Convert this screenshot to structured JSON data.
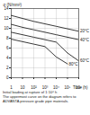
{
  "chart_data": {
    "type": "line",
    "x_label": "Time (h)",
    "y_label": "σ (N/mm²)",
    "x": [
      1,
      10,
      100,
      1000,
      10000,
      100000,
      1000000
    ],
    "series": [
      {
        "name": "20°C",
        "color": "#222222",
        "values": [
          12.6,
          12.0,
          11.4,
          10.9,
          10.4,
          9.9,
          9.4
        ]
      },
      {
        "name": "40°C",
        "color": "#222222",
        "values": [
          10.8,
          10.2,
          9.7,
          9.2,
          8.7,
          8.2,
          7.7
        ]
      },
      {
        "name": "60°C",
        "color": "#222222",
        "values": [
          9.2,
          8.7,
          8.2,
          7.7,
          7.2,
          5.0,
          3.4
        ]
      },
      {
        "name": "80°C",
        "color": "#222222",
        "values": [
          7.8,
          7.3,
          6.8,
          6.3,
          4.2,
          2.8,
          null
        ]
      }
    ],
    "log": "x",
    "grid": true,
    "xlim": [
      1,
      1000000
    ],
    "xticks": [
      {
        "value": 1,
        "label": "1"
      },
      {
        "value": 10,
        "label": "10"
      },
      {
        "value": 100,
        "label": "10²"
      },
      {
        "value": 1000,
        "label": "10³"
      },
      {
        "value": 10000,
        "label": "10⁴"
      },
      {
        "value": 100000,
        "label": "10⁵"
      },
      {
        "value": 1000000,
        "label": "10⁶"
      }
    ],
    "ylim": [
      0,
      14
    ],
    "yticks": [
      0,
      2,
      4,
      6,
      8,
      10,
      12,
      14
    ],
    "notes": [
      "Initial loading at rupture of 1·10⁶ h",
      "The uppermost curve on the diagram refers to",
      "ADVANTA pressure grade pipe materials."
    ]
  }
}
